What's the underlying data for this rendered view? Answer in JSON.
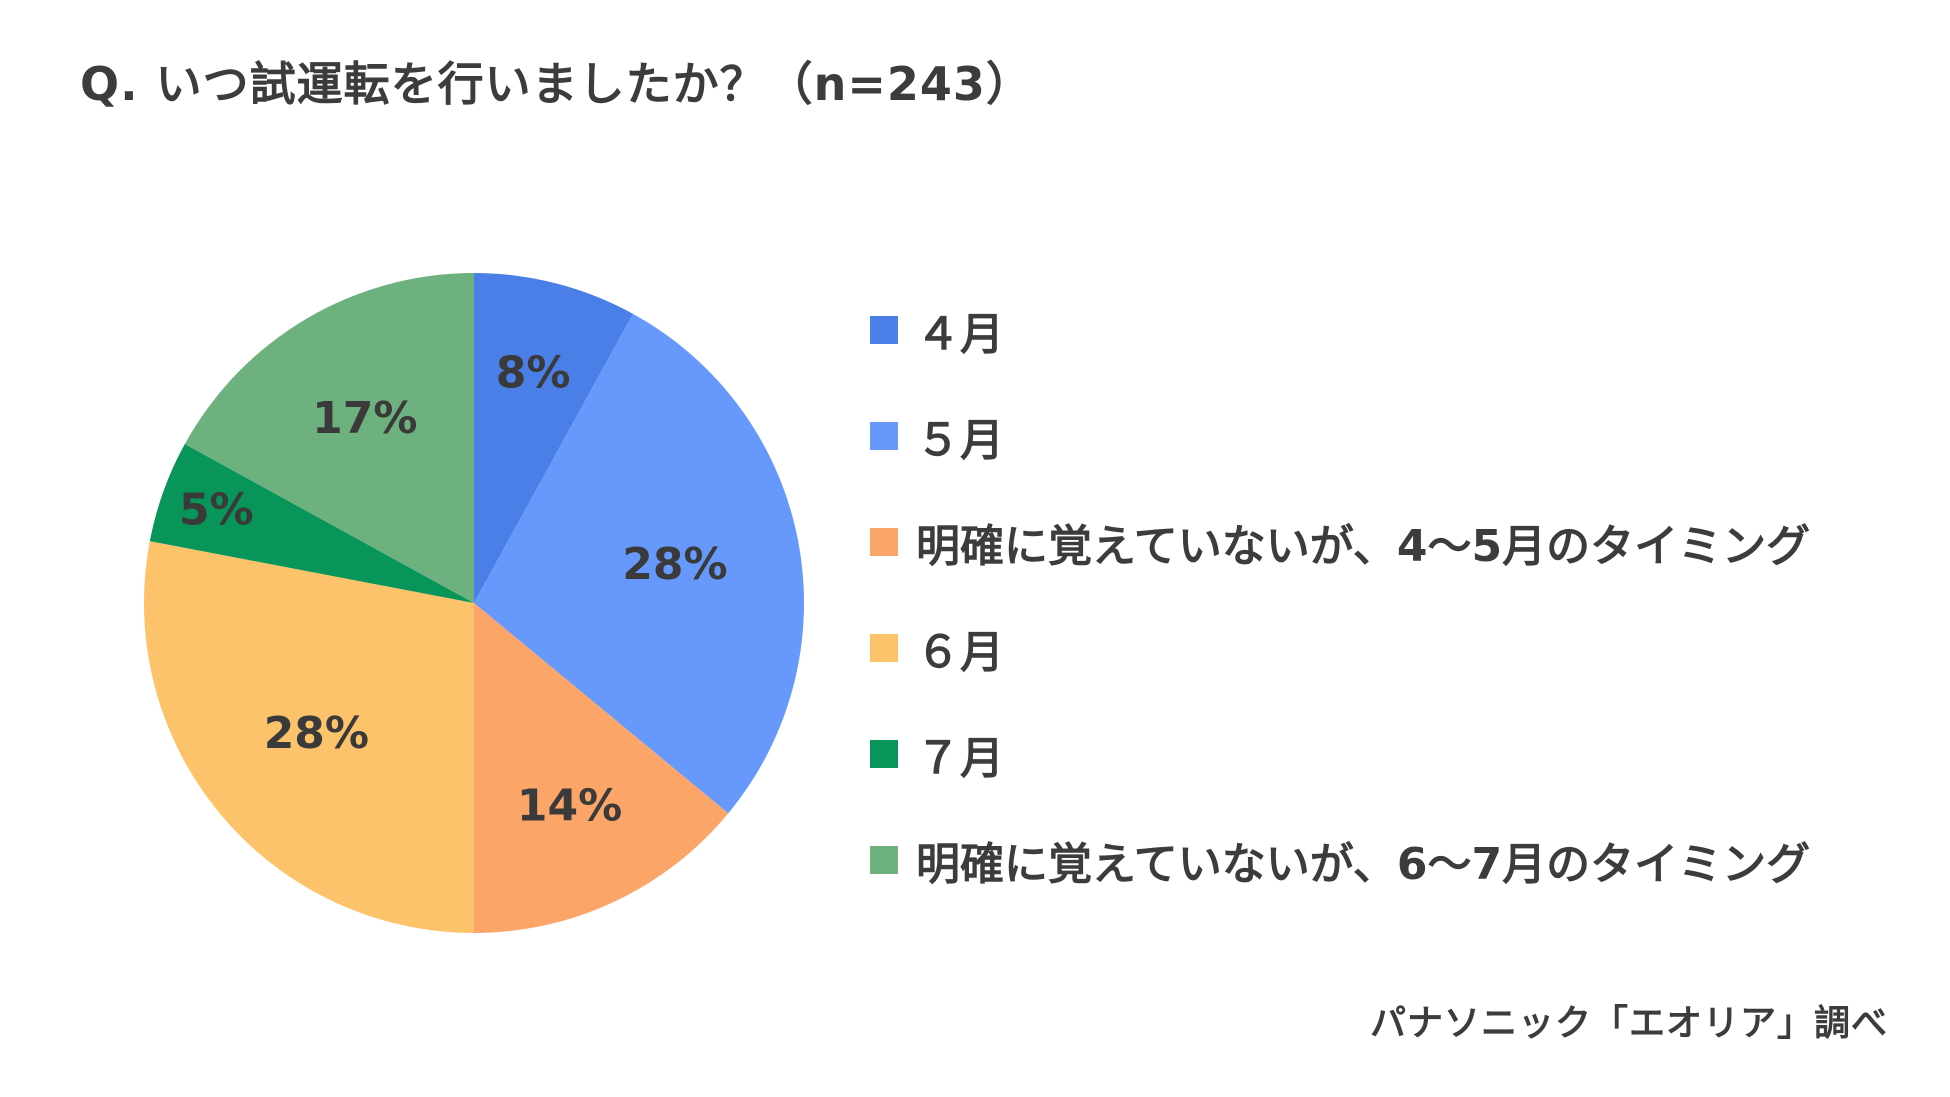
{
  "chart_data": {
    "type": "pie",
    "title": "Q. いつ試運転を行いましたか？（n=243）",
    "start_angle": "12 o'clock",
    "direction": "clockwise",
    "slices": [
      {
        "label": "４月",
        "value": 8,
        "data_label": "8%",
        "color": "#4a7fe8"
      },
      {
        "label": "５月",
        "value": 28,
        "data_label": "28%",
        "color": "#6699fb"
      },
      {
        "label": "明確に覚えていないが、4〜5月のタイミング",
        "value": 14,
        "data_label": "14%",
        "color": "#fca569"
      },
      {
        "label": "６月",
        "value": 28,
        "data_label": "28%",
        "color": "#fcc36a"
      },
      {
        "label": "７月",
        "value": 5,
        "data_label": "5%",
        "color": "#089559"
      },
      {
        "label": "明確に覚えていないが、6〜7月のタイミング",
        "value": 17,
        "data_label": "17%",
        "color": "#6db17e"
      }
    ],
    "legend_position": "right"
  },
  "source": "パナソニック「エオリア」調べ"
}
